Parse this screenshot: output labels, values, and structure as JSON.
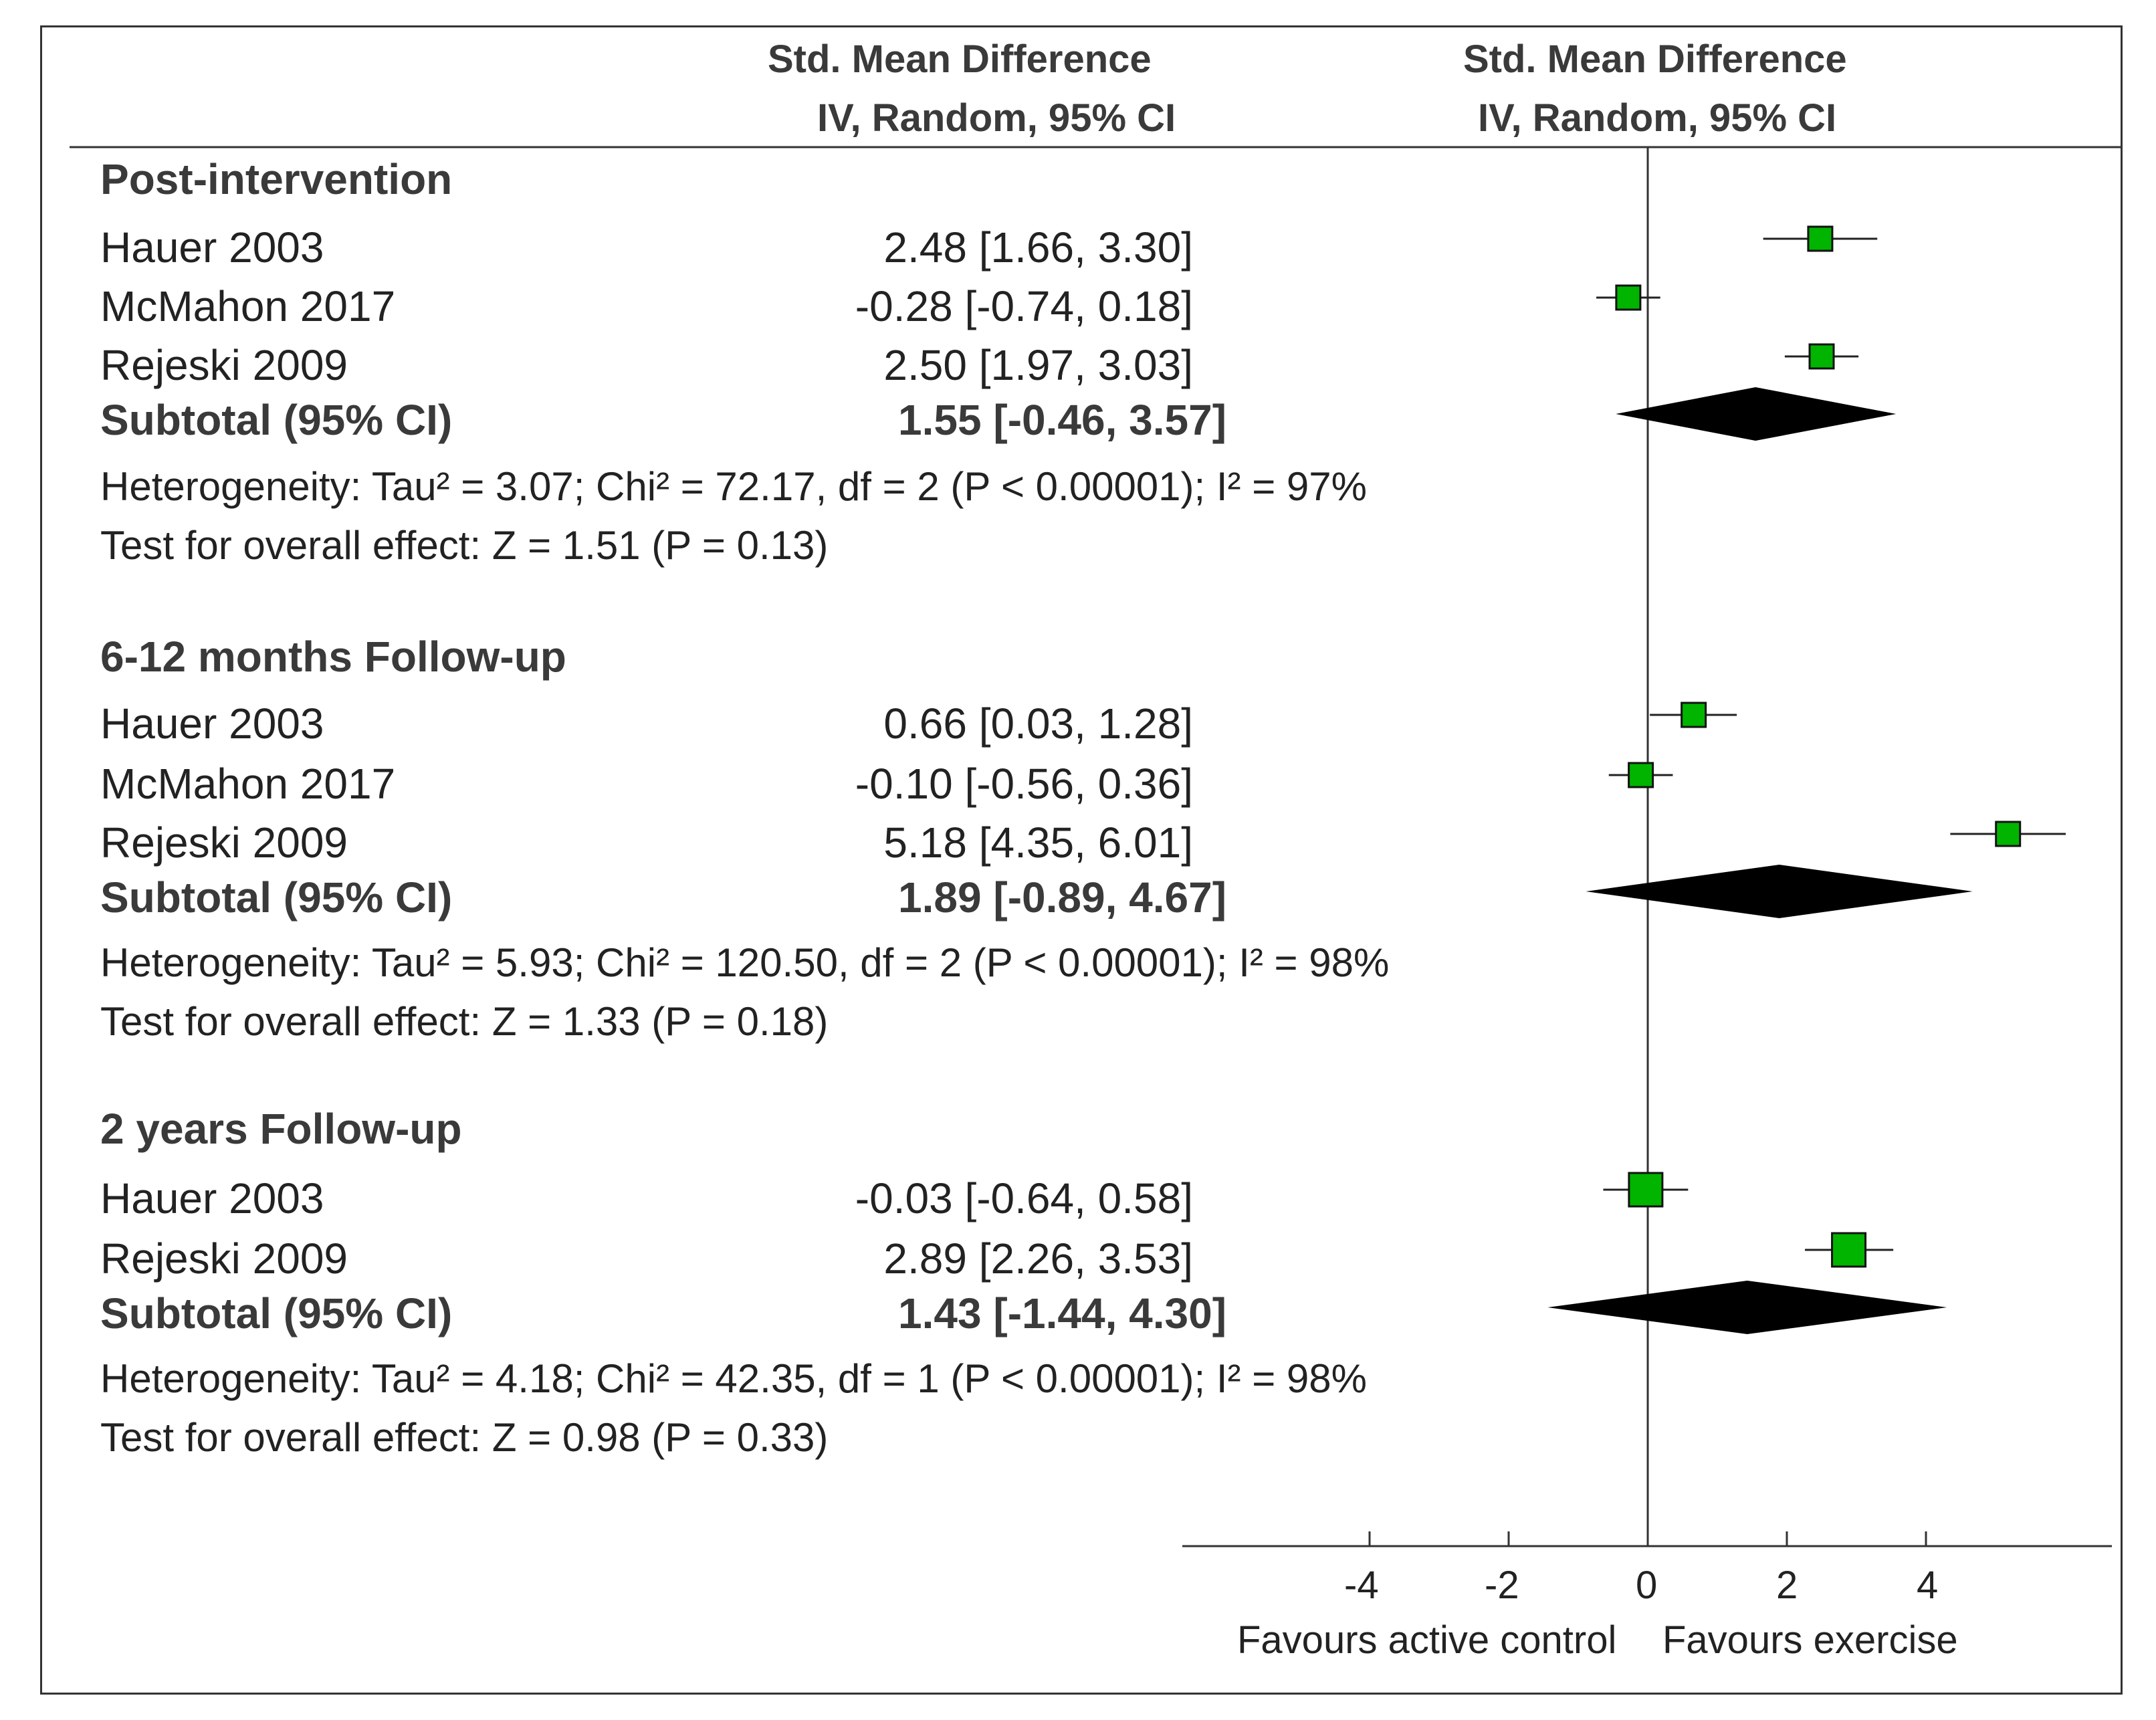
{
  "header": {
    "left_line1": "Std. Mean Difference",
    "left_line2": "IV, Random, 95% CI",
    "right_line1": "Std. Mean Difference",
    "right_line2": "IV, Random, 95% CI"
  },
  "groups": [
    {
      "title": "Post-intervention",
      "studies": [
        {
          "name": "Hauer 2003",
          "estimate": "2.48 [1.66, 3.30]"
        },
        {
          "name": "McMahon 2017",
          "estimate": "-0.28 [-0.74, 0.18]"
        },
        {
          "name": "Rejeski 2009",
          "estimate": "2.50 [1.97, 3.03]"
        }
      ],
      "subtotal_label": "Subtotal (95% CI)",
      "subtotal_estimate": "1.55 [-0.46, 3.57]",
      "heterogeneity": "Heterogeneity: Tau² = 3.07; Chi² = 72.17, df = 2 (P < 0.00001); I² = 97%",
      "overall_effect": "Test for overall effect: Z = 1.51 (P = 0.13)"
    },
    {
      "title": "6-12 months Follow-up",
      "studies": [
        {
          "name": "Hauer 2003",
          "estimate": "0.66 [0.03, 1.28]"
        },
        {
          "name": "McMahon 2017",
          "estimate": "-0.10 [-0.56, 0.36]"
        },
        {
          "name": "Rejeski 2009",
          "estimate": "5.18 [4.35, 6.01]"
        }
      ],
      "subtotal_label": "Subtotal (95% CI)",
      "subtotal_estimate": "1.89 [-0.89, 4.67]",
      "heterogeneity": "Heterogeneity: Tau² = 5.93; Chi² = 120.50, df = 2 (P < 0.00001); I² = 98%",
      "overall_effect": "Test for overall effect: Z = 1.33 (P = 0.18)"
    },
    {
      "title": "2 years Follow-up",
      "studies": [
        {
          "name": "Hauer 2003",
          "estimate": "-0.03 [-0.64, 0.58]"
        },
        {
          "name": "Rejeski 2009",
          "estimate": "2.89 [2.26, 3.53]"
        }
      ],
      "subtotal_label": "Subtotal (95% CI)",
      "subtotal_estimate": "1.43 [-1.44, 4.30]",
      "heterogeneity": "Heterogeneity: Tau² = 4.18; Chi² = 42.35, df = 1 (P < 0.00001); I² = 98%",
      "overall_effect": "Test for overall effect: Z = 0.98 (P = 0.33)"
    }
  ],
  "axis": {
    "ticks": [
      "-4",
      "-2",
      "0",
      "2",
      "4"
    ],
    "label_left": "Favours active control",
    "label_right": "Favours exercise"
  },
  "chart_data": {
    "type": "forest",
    "title": "",
    "xlabel_left": "Favours active control",
    "xlabel_right": "Favours exercise",
    "xticks": [
      -4,
      -2,
      0,
      2,
      4
    ],
    "xlim": [
      -6.6,
      6.6
    ],
    "marker_color": "#00b400",
    "diamond_color": "#000000",
    "groups": [
      {
        "name": "Post-intervention",
        "studies": [
          {
            "name": "Hauer 2003",
            "mean": 2.48,
            "lower": 1.66,
            "upper": 3.3
          },
          {
            "name": "McMahon 2017",
            "mean": -0.28,
            "lower": -0.74,
            "upper": 0.18
          },
          {
            "name": "Rejeski 2009",
            "mean": 2.5,
            "lower": 1.97,
            "upper": 3.03
          }
        ],
        "subtotal": {
          "mean": 1.55,
          "lower": -0.46,
          "upper": 3.57
        }
      },
      {
        "name": "6-12 months Follow-up",
        "studies": [
          {
            "name": "Hauer 2003",
            "mean": 0.66,
            "lower": 0.03,
            "upper": 1.28
          },
          {
            "name": "McMahon 2017",
            "mean": -0.1,
            "lower": -0.56,
            "upper": 0.36
          },
          {
            "name": "Rejeski 2009",
            "mean": 5.18,
            "lower": 4.35,
            "upper": 6.01
          }
        ],
        "subtotal": {
          "mean": 1.89,
          "lower": -0.89,
          "upper": 4.67
        }
      },
      {
        "name": "2 years Follow-up",
        "studies": [
          {
            "name": "Hauer 2003",
            "mean": -0.03,
            "lower": -0.64,
            "upper": 0.58
          },
          {
            "name": "Rejeski 2009",
            "mean": 2.89,
            "lower": 2.26,
            "upper": 3.53
          }
        ],
        "subtotal": {
          "mean": 1.43,
          "lower": -1.44,
          "upper": 4.3
        }
      }
    ]
  }
}
